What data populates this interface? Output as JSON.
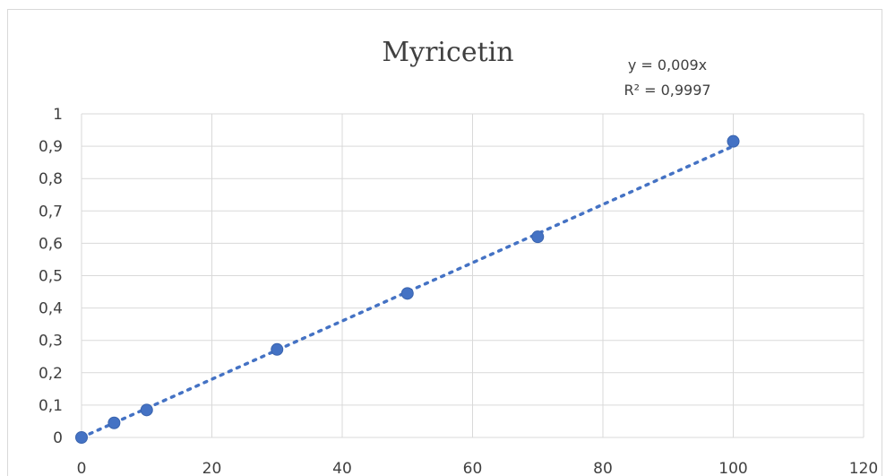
{
  "chart_data": {
    "type": "scatter",
    "title": "Myricetin",
    "xlabel": "",
    "ylabel": "",
    "xlim": [
      0,
      120
    ],
    "ylim": [
      0,
      1
    ],
    "x_ticks": [
      "0",
      "20",
      "40",
      "60",
      "80",
      "100",
      "120"
    ],
    "y_ticks": [
      "0",
      "0,1",
      "0,2",
      "0,3",
      "0,4",
      "0,5",
      "0,6",
      "0,7",
      "0,8",
      "0,9",
      "1"
    ],
    "grid": true,
    "legend": "none",
    "series": [
      {
        "points": [
          {
            "x": 0,
            "y": 0
          },
          {
            "x": 5,
            "y": 0.045
          },
          {
            "x": 10,
            "y": 0.085
          },
          {
            "x": 30,
            "y": 0.272
          },
          {
            "x": 50,
            "y": 0.445
          },
          {
            "x": 70,
            "y": 0.62
          },
          {
            "x": 100,
            "y": 0.915
          }
        ],
        "color": "#4472c4"
      }
    ],
    "trendline": {
      "type": "linear",
      "slope": 0.009,
      "intercept": 0,
      "x_range": [
        0,
        100
      ],
      "style": "dotted",
      "color": "#4472c4",
      "equation": "y = 0,009x",
      "r_squared": "R² = 0,9997"
    }
  }
}
